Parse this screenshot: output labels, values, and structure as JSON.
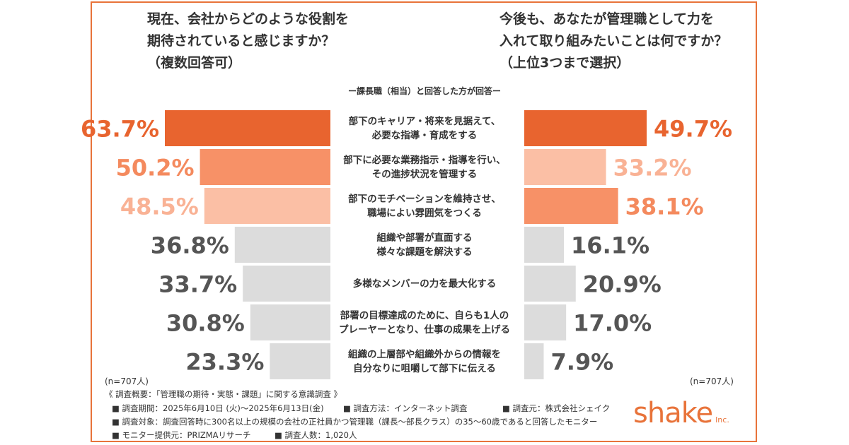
{
  "left_question": {
    "line1": "現在、会社からどのような役割を",
    "line2": "期待されていると感じますか？",
    "line3": "（複数回答可）"
  },
  "right_question": {
    "line1": "今後も、あなたが管理職として力を",
    "line2": "入れて取り組みたいことは何ですか？",
    "line3": "（上位3つまで選択）"
  },
  "subtitle": "ー課長職（相当）と回答した方が回答ー",
  "n_left": "(n=707人)",
  "n_right": "(n=707人)",
  "chart_data": {
    "type": "bar",
    "categories": [
      "部下のキャリア・将来を見据えて、\n必要な指導・育成をする",
      "部下に必要な業務指示・指導を行い、\nその進捗状況を管理する",
      "部下のモチベーションを維持させ、\n職場によい雰囲気をつくる",
      "組織や部署が直面する\n様々な課題を解決する",
      "多様なメンバーの力を最大化する",
      "部署の目標達成のために、自らも1人の\nプレーヤーとなり、仕事の成果を上げる",
      "組織の上層部や組織外からの情報を\n自分なりに咀嚼して部下に伝える"
    ],
    "series": [
      {
        "values": [
          63.7,
          50.2,
          48.5,
          36.8,
          33.7,
          30.8,
          23.3
        ],
        "labels": [
          "63.7%",
          "50.2%",
          "48.5%",
          "36.8%",
          "33.7%",
          "30.8%",
          "23.3%"
        ],
        "colors": [
          "#e8642f",
          "#f79167",
          "#fbbfa5",
          "#dcdcdc",
          "#dcdcdc",
          "#dcdcdc",
          "#dcdcdc"
        ],
        "label_colors": [
          "#e8642f",
          "#f48a5e",
          "#f9b295",
          "#555555",
          "#555555",
          "#555555",
          "#555555"
        ]
      },
      {
        "values": [
          49.7,
          33.2,
          38.1,
          16.1,
          20.9,
          17.0,
          7.9
        ],
        "labels": [
          "49.7%",
          "33.2%",
          "38.1%",
          "16.1%",
          "20.9%",
          "17.0%",
          "7.9%"
        ],
        "colors": [
          "#e8642f",
          "#fbbfa5",
          "#f79167",
          "#dcdcdc",
          "#dcdcdc",
          "#dcdcdc",
          "#dcdcdc"
        ],
        "label_colors": [
          "#e8642f",
          "#f9b295",
          "#f48a5e",
          "#555555",
          "#555555",
          "#555555",
          "#555555"
        ]
      }
    ]
  },
  "footer": {
    "title": "《 調査概要：「管理職の期待・実態・課題」に関する意識調査 》",
    "period": "■ 調査期間：2025年6月10日 (火)～2025年6月13日(金)",
    "method": "■ 調査方法：インターネット調査",
    "source": "■ 調査元：株式会社シェイク",
    "target": "■ 調査対象：調査回答時に300名以上の規模の会社の正社員かつ管理職（課長～部長クラス）の35～60歳であると回答したモニター",
    "provider": "■ モニター提供元：PRIZMAリサーチ",
    "count": "■ 調査人数：1,020人"
  },
  "logo": {
    "text": "shake",
    "suffix": "Inc."
  }
}
